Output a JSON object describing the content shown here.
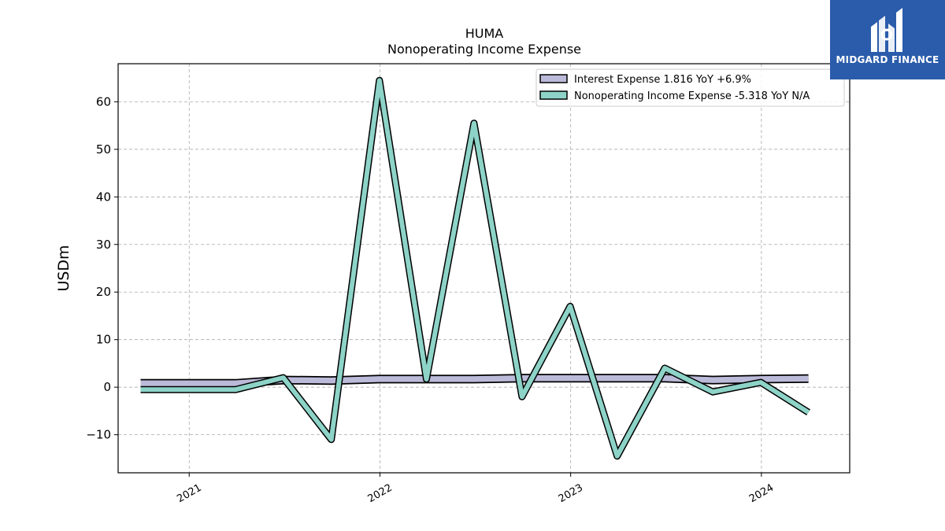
{
  "brand": {
    "name": "MIDGARD FINANCE",
    "bg_color": "#2b5cab"
  },
  "chart_data": {
    "type": "line",
    "title": "HUMA",
    "subtitle": "Nonoperating Income Expense",
    "ylabel": "USDm",
    "xlabel": "",
    "ylim": [
      -18,
      68
    ],
    "yticks": [
      -10,
      0,
      10,
      20,
      30,
      40,
      50,
      60
    ],
    "ytick_labels": [
      "−10",
      "0",
      "10",
      "20",
      "30",
      "40",
      "50",
      "60"
    ],
    "x_range": [
      "2020-08-18",
      "2024-06-18"
    ],
    "xticks": [
      "2021-01-01",
      "2022-01-01",
      "2023-01-01",
      "2024-01-01"
    ],
    "xtick_labels": [
      "2021",
      "2022",
      "2023",
      "2024"
    ],
    "grid": true,
    "legend_position": "top-right",
    "x": [
      "2020-09-30",
      "2020-12-31",
      "2021-03-31",
      "2021-06-30",
      "2021-09-30",
      "2021-12-31",
      "2022-03-31",
      "2022-06-30",
      "2022-09-30",
      "2022-12-31",
      "2023-03-31",
      "2023-06-30",
      "2023-09-30",
      "2023-12-31",
      "2024-03-31"
    ],
    "series": [
      {
        "name": "Interest Expense",
        "legend_label": "Interest Expense  1.816 YoY +6.9%",
        "color": "#bcbad9",
        "values": [
          0.8,
          0.8,
          0.8,
          1.5,
          1.4,
          1.7,
          1.7,
          1.7,
          1.9,
          1.9,
          1.9,
          1.9,
          1.5,
          1.7,
          1.8
        ]
      },
      {
        "name": "Nonoperating Income Expense",
        "legend_label": "Nonoperating Income Expense  -5.318 YoY N/A",
        "color": "#8dd3c7",
        "values": [
          -0.5,
          -0.5,
          -0.5,
          2.0,
          -11.0,
          64.5,
          1.7,
          55.5,
          -2.0,
          17.0,
          -14.5,
          4.0,
          -1.0,
          1.0,
          -5.3
        ]
      }
    ]
  }
}
